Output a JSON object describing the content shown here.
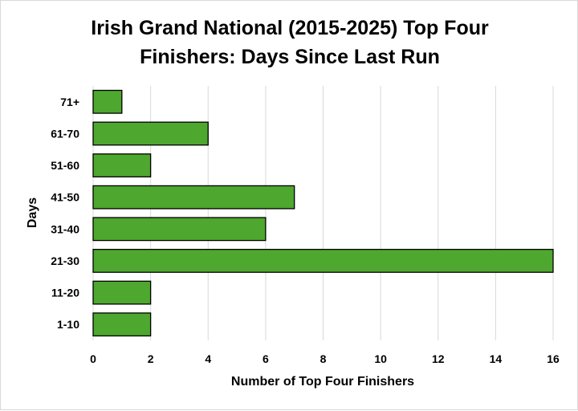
{
  "chart_data": {
    "type": "bar",
    "orientation": "horizontal",
    "title": "Irish Grand National (2015-2025) Top Four Finishers: Days Since Last Run",
    "title_lines": [
      "Irish Grand National (2015-2025) Top Four",
      "Finishers: Days Since Last Run"
    ],
    "xlabel": "Number of Top Four Finishers",
    "ylabel": "Days",
    "categories": [
      "1-10",
      "11-20",
      "21-30",
      "31-40",
      "41-50",
      "51-60",
      "61-70",
      "71+"
    ],
    "values": [
      2,
      2,
      16,
      6,
      7,
      2,
      4,
      1
    ],
    "xlim": [
      0,
      16
    ],
    "xticks": [
      0,
      2,
      4,
      6,
      8,
      10,
      12,
      14,
      16
    ],
    "grid": "vertical",
    "legend": "none",
    "bar_color": "#4ea72e",
    "bar_edge_color": "#000000",
    "grid_color": "#d9d9d9"
  }
}
